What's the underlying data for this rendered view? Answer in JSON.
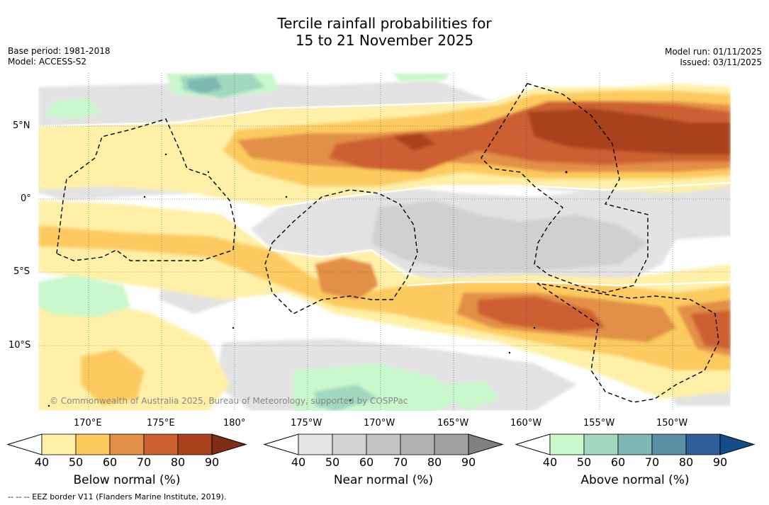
{
  "title_line1": "Tercile rainfall probabilities for",
  "title_line2": "15 to 21 November 2025",
  "base_period": "Base period: 1981-2018",
  "model": "Model: ACCESS-S2",
  "model_run": "Model run: 01/11/2025",
  "issued": "Issued: 03/11/2025",
  "lat_labels": [
    "5°N",
    "0°",
    "5°S",
    "10°S"
  ],
  "lon_labels": [
    "170°E",
    "175°E",
    "180°",
    "175°W",
    "170°W",
    "165°W",
    "160°W",
    "155°W",
    "150°W"
  ],
  "copyright": "© Commonwealth of Australia 2025, Bureau of Meteorology, supported by COSPPac",
  "legends": [
    {
      "label": "Below normal (%)",
      "ticks": [
        "40",
        "50",
        "60",
        "70",
        "80",
        "90"
      ],
      "colors": [
        "#fff0a8",
        "#fdca5e",
        "#e29046",
        "#cd6130",
        "#a9431e",
        "#7f2d14"
      ]
    },
    {
      "label": "Near normal (%)",
      "ticks": [
        "40",
        "50",
        "60",
        "70",
        "80",
        "90"
      ],
      "colors": [
        "#e4e4e4",
        "#d4d4d4",
        "#c4c4c4",
        "#b2b2b2",
        "#a0a0a0",
        "#808080"
      ]
    },
    {
      "label": "Above normal (%)",
      "ticks": [
        "40",
        "50",
        "60",
        "70",
        "80",
        "90"
      ],
      "colors": [
        "#c8f8cc",
        "#a2d8c0",
        "#7eb8b2",
        "#5a8fa4",
        "#2f5e98",
        "#164c8a"
      ]
    }
  ],
  "footnote": "-- -- -- EEZ border V11 (Flanders Marine Institute, 2019)."
}
